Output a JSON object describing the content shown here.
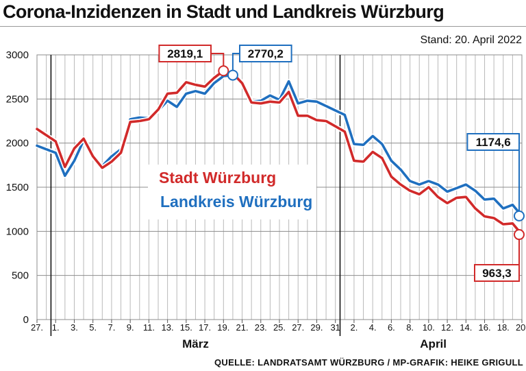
{
  "title": "Corona-Inzidenzen in Stadt und Landkreis Würzburg",
  "stand": "Stand: 20. April 2022",
  "source": "QUELLE: LANDRATSAMT WÜRZBURG / MP-GRAFIK: HEIKE GRIGULL",
  "chart_data": {
    "type": "line",
    "ylim": [
      0,
      3000
    ],
    "yticks": [
      0,
      500,
      1000,
      1500,
      2000,
      2500,
      3000
    ],
    "ytick_labels": [
      "0",
      "500",
      "1000",
      "1500",
      "2000",
      "2500",
      "3000"
    ],
    "x": [
      "27.02.",
      "28.02.",
      "01.03.",
      "02.03.",
      "03.03.",
      "04.03.",
      "05.03.",
      "06.03.",
      "07.03.",
      "08.03.",
      "09.03.",
      "10.03.",
      "11.03.",
      "12.03.",
      "13.03.",
      "14.03.",
      "15.03.",
      "16.03.",
      "17.03.",
      "18.03.",
      "19.03.",
      "20.03.",
      "21.03.",
      "22.03.",
      "23.03.",
      "24.03.",
      "25.03.",
      "26.03.",
      "27.03.",
      "28.03.",
      "29.03.",
      "30.03.",
      "31.03.",
      "01.04.",
      "02.04.",
      "03.04.",
      "04.04.",
      "05.04.",
      "06.04.",
      "07.04.",
      "08.04.",
      "09.04.",
      "10.04.",
      "11.04.",
      "12.04.",
      "13.04.",
      "14.04.",
      "15.04.",
      "16.04.",
      "17.04.",
      "18.04.",
      "19.04.",
      "20.04."
    ],
    "xtick_labels": [
      {
        "i": 0,
        "label": "27."
      },
      {
        "i": 2,
        "label": "1."
      },
      {
        "i": 4,
        "label": "3."
      },
      {
        "i": 6,
        "label": "5."
      },
      {
        "i": 8,
        "label": "7."
      },
      {
        "i": 10,
        "label": "9."
      },
      {
        "i": 12,
        "label": "11."
      },
      {
        "i": 14,
        "label": "13."
      },
      {
        "i": 16,
        "label": "15."
      },
      {
        "i": 18,
        "label": "17."
      },
      {
        "i": 20,
        "label": "19."
      },
      {
        "i": 22,
        "label": "21."
      },
      {
        "i": 24,
        "label": "23."
      },
      {
        "i": 26,
        "label": "25."
      },
      {
        "i": 28,
        "label": "27."
      },
      {
        "i": 30,
        "label": "29."
      },
      {
        "i": 32,
        "label": "31"
      },
      {
        "i": 34,
        "label": "2."
      },
      {
        "i": 36,
        "label": "4."
      },
      {
        "i": 38,
        "label": "6."
      },
      {
        "i": 40,
        "label": "8."
      },
      {
        "i": 42,
        "label": "10."
      },
      {
        "i": 44,
        "label": "12."
      },
      {
        "i": 46,
        "label": "14."
      },
      {
        "i": 48,
        "label": "16."
      },
      {
        "i": 50,
        "label": "18."
      },
      {
        "i": 52,
        "label": "20."
      }
    ],
    "month_labels": [
      {
        "label": "März",
        "from": 2,
        "to": 32
      },
      {
        "label": "April",
        "from": 33,
        "to": 52
      }
    ],
    "month_separators": [
      1.5,
      32.5
    ],
    "grid": true,
    "legend_placement": "center-left",
    "series": [
      {
        "name": "Stadt Würzburg",
        "color": "#d12a2a",
        "values": [
          2160,
          2090,
          2020,
          1730,
          1940,
          2050,
          1850,
          1720,
          1790,
          1890,
          2240,
          2250,
          2270,
          2380,
          2560,
          2570,
          2690,
          2660,
          2640,
          2740,
          2819.1,
          2790,
          2680,
          2460,
          2450,
          2470,
          2460,
          2580,
          2310,
          2310,
          2260,
          2250,
          2190,
          2130,
          1800,
          1790,
          1900,
          1830,
          1620,
          1530,
          1460,
          1420,
          1500,
          1390,
          1320,
          1380,
          1390,
          1260,
          1170,
          1150,
          1080,
          1090,
          963.3
        ],
        "callout": {
          "index": 20,
          "label": "2819,1"
        },
        "end_label": "963,3"
      },
      {
        "name": "Landkreis Würzburg",
        "color": "#1f6fbf",
        "values": [
          1970,
          1930,
          1890,
          1630,
          1800,
          2030,
          1840,
          1740,
          1850,
          1930,
          2270,
          2290,
          2280,
          2370,
          2480,
          2410,
          2560,
          2590,
          2560,
          2680,
          2760,
          2770.2,
          2690,
          2470,
          2480,
          2540,
          2490,
          2700,
          2450,
          2480,
          2470,
          2420,
          2370,
          2320,
          1990,
          1980,
          2080,
          1990,
          1800,
          1700,
          1570,
          1530,
          1570,
          1530,
          1450,
          1490,
          1530,
          1460,
          1360,
          1370,
          1260,
          1300,
          1174.6
        ],
        "callout": {
          "index": 21,
          "label": "2770,2"
        },
        "end_label": "1174,6"
      }
    ]
  }
}
